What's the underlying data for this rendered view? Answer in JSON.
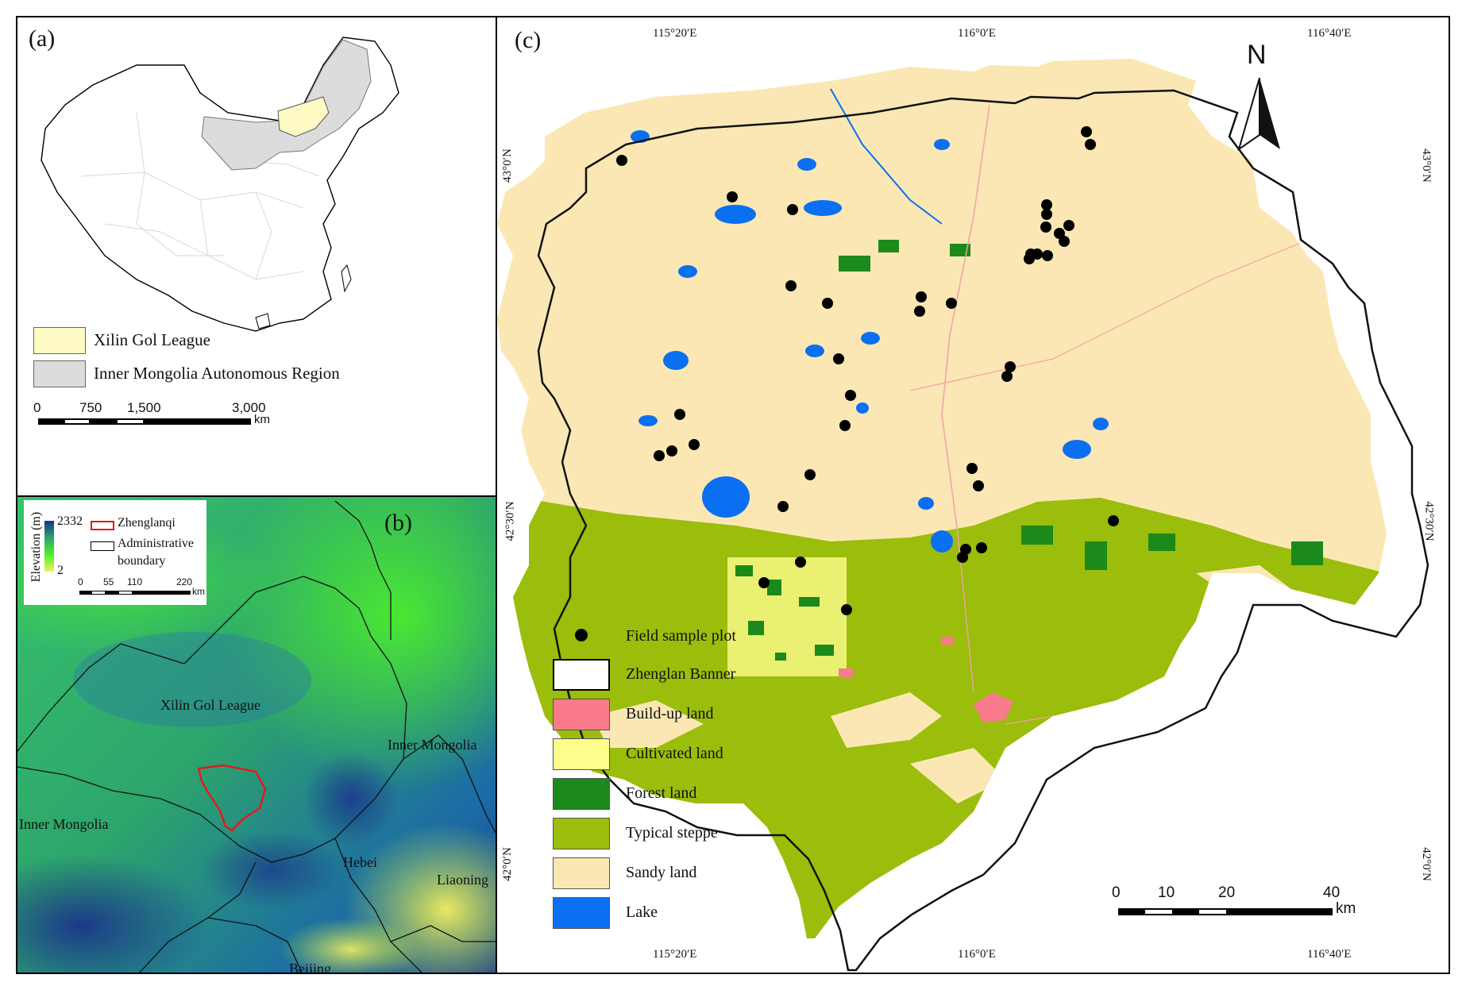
{
  "panel_a": {
    "tag": "(a)",
    "legend": [
      {
        "label": "Xilin Gol League",
        "color": "#fdfbc3"
      },
      {
        "label": "Inner Mongolia Autonomous Region",
        "color": "#dcdcdc"
      }
    ],
    "scalebar": {
      "ticks": [
        "0",
        "750",
        "1,500",
        "3,000"
      ],
      "unit": "km"
    }
  },
  "panel_b": {
    "tag": "(b)",
    "elevation_title": "Elevation (m)",
    "elevation_max": "2332",
    "elevation_min": "2",
    "legend": [
      {
        "label": "Zhenglanqi",
        "color": "#e41a1c"
      },
      {
        "label": "Administrative boundary",
        "color": "#000000"
      }
    ],
    "scalebar": {
      "ticks": [
        "0",
        "55",
        "110",
        "220"
      ],
      "unit": "km"
    },
    "place_labels": {
      "xilin": "Xilin Gol League",
      "inner_mongolia_e": "Inner Mongolia",
      "inner_mongolia_w": "Inner Mongolia",
      "hebei": "Hebei",
      "liaoning": "Liaoning",
      "beijing": "Beijing"
    }
  },
  "panel_c": {
    "tag": "(c)",
    "north": "N",
    "lon_top": [
      "115°20′E",
      "116°0′E",
      "116°40′E"
    ],
    "lon_bottom": [
      "115°20′E",
      "116°0′E",
      "116°40′E"
    ],
    "lat_left": [
      "43°0′N",
      "42°30′N",
      "42°0′N"
    ],
    "lat_right": [
      "43°0′N",
      "42°30′N",
      "42°0′N"
    ],
    "legend": [
      {
        "label": "Field sample plot",
        "color": "#000000",
        "kind": "dot"
      },
      {
        "label": "Zhenglan Banner",
        "color": "#ffffff",
        "kind": "box"
      },
      {
        "label": "Build-up land",
        "color": "#f97b8c",
        "kind": "box"
      },
      {
        "label": "Cultivated land",
        "color": "#fdfd8c",
        "kind": "box"
      },
      {
        "label": "Forest land",
        "color": "#1b8a1b",
        "kind": "box"
      },
      {
        "label": "Typical steppe",
        "color": "#9bbd0b",
        "kind": "box"
      },
      {
        "label": "Sandy land",
        "color": "#fbe7b3",
        "kind": "box"
      },
      {
        "label": "Lake",
        "color": "#0b6ff2",
        "kind": "box"
      }
    ],
    "scalebar": {
      "ticks": [
        "0",
        "10",
        "20",
        "40"
      ],
      "unit": "km"
    },
    "sample_plot_count": 40
  }
}
